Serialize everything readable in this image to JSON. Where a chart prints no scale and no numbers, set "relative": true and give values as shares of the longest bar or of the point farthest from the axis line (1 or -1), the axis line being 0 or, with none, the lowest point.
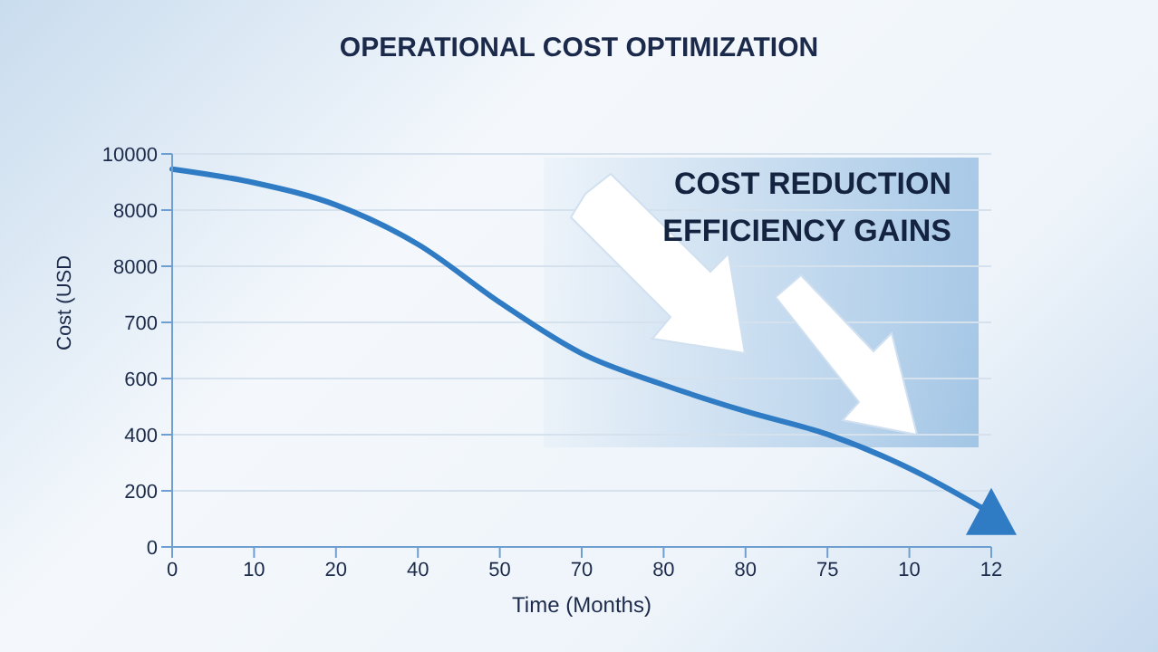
{
  "chart_data": {
    "type": "line",
    "title": "OPERATIONAL COST OPTIMIZATION",
    "xlabel": "Time (Months)",
    "ylabel": "Cost (USD",
    "annotations": [
      "COST REDUCTION",
      "EFFICIENCY GAINS",
      "0",
      "200",
      "400",
      "600",
      "700",
      "8000",
      "8000",
      "10000"
    ],
    "categories": [
      "0",
      "10",
      "20",
      "40",
      "50",
      "70",
      "80",
      "80",
      "75",
      "10",
      "12"
    ],
    "series": [
      {
        "color": "#2f7bc4",
        "values": [
          1,
          0.964,
          0.905,
          0.801,
          0.647,
          0.512,
          0.429,
          0.359,
          0.298,
          0.208,
          0.089
        ]
      }
    ],
    "relative": true,
    "grid": "y",
    "marker": "none",
    "line_style": "solid",
    "legend": false
  }
}
